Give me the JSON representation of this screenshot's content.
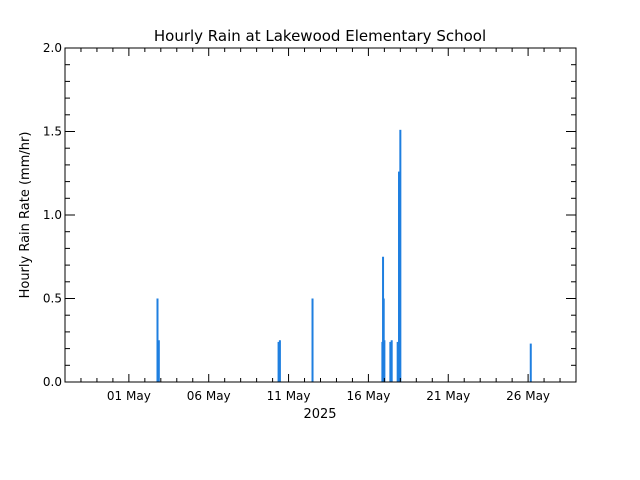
{
  "chart_data": {
    "type": "bar",
    "title": "Hourly Rain at Lakewood Elementary School",
    "xlabel": "2025",
    "ylabel": "Hourly Rain Rate (mm/hr)",
    "ylim": [
      0,
      2.0
    ],
    "xlim": [
      "2025-04-27 00:00",
      "2025-05-29 00:00"
    ],
    "x_ticks": [
      {
        "date": "2025-05-01",
        "label": "01 May"
      },
      {
        "date": "2025-05-06",
        "label": "06 May"
      },
      {
        "date": "2025-05-11",
        "label": "11 May"
      },
      {
        "date": "2025-05-16",
        "label": "16 May"
      },
      {
        "date": "2025-05-21",
        "label": "21 May"
      },
      {
        "date": "2025-05-26",
        "label": "26 May"
      }
    ],
    "y_ticks": [
      {
        "value": 0.0,
        "label": "0.0"
      },
      {
        "value": 0.5,
        "label": "0.5"
      },
      {
        "value": 1.0,
        "label": "1.0"
      },
      {
        "value": 1.5,
        "label": "1.5"
      },
      {
        "value": 2.0,
        "label": "2.0"
      }
    ],
    "bar_color": "#1f7fe0",
    "grid": false,
    "series": [
      {
        "values": [
          {
            "time": "2025-05-02 19:00",
            "value": 0.5
          },
          {
            "time": "2025-05-02 21:00",
            "value": 0.25
          },
          {
            "time": "2025-05-10 09:00",
            "value": 0.24
          },
          {
            "time": "2025-05-10 11:00",
            "value": 0.25
          },
          {
            "time": "2025-05-12 12:00",
            "value": 0.5
          },
          {
            "time": "2025-05-16 21:00",
            "value": 0.24
          },
          {
            "time": "2025-05-16 22:00",
            "value": 0.75
          },
          {
            "time": "2025-05-16 23:00",
            "value": 0.5
          },
          {
            "time": "2025-05-17 00:00",
            "value": 0.25
          },
          {
            "time": "2025-05-17 09:00",
            "value": 0.24
          },
          {
            "time": "2025-05-17 11:00",
            "value": 0.25
          },
          {
            "time": "2025-05-17 20:00",
            "value": 0.24
          },
          {
            "time": "2025-05-17 22:00",
            "value": 1.26
          },
          {
            "time": "2025-05-18 00:00",
            "value": 1.51
          },
          {
            "time": "2025-05-26 04:00",
            "value": 0.23
          }
        ]
      }
    ]
  }
}
